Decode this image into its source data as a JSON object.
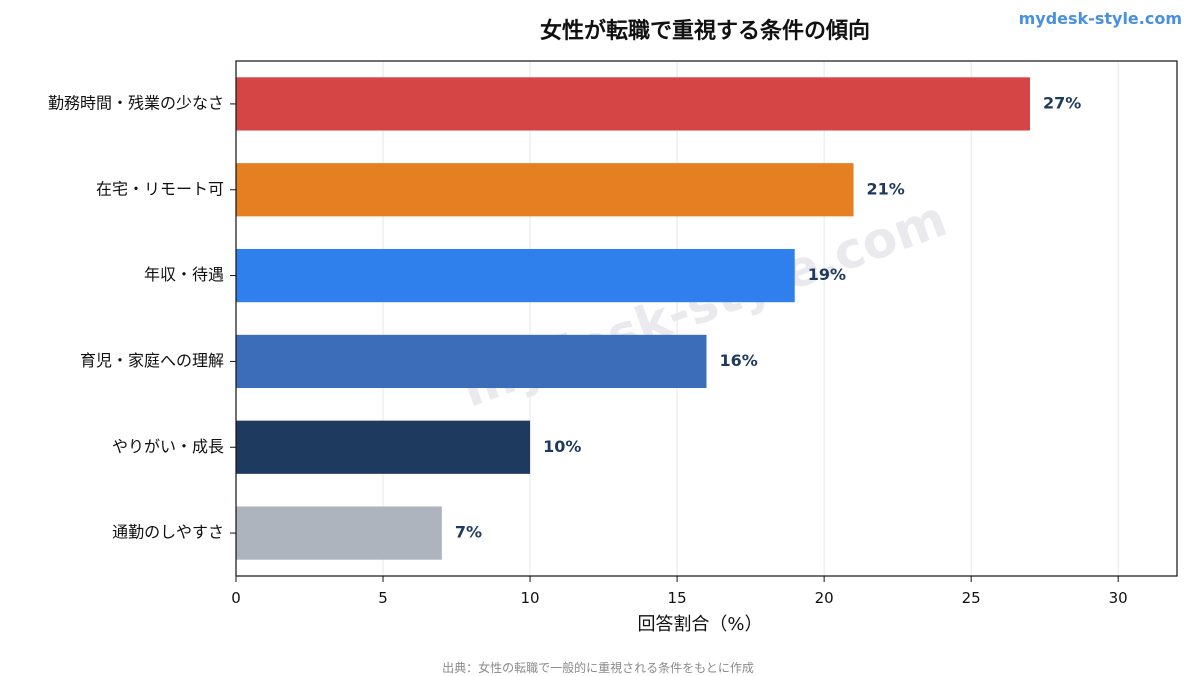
{
  "brand": "mydesk-style.com",
  "watermark": "mydesk-style.com",
  "source_note": "出典：女性の転職で一般的に重視される条件をもとに作成",
  "chart_data": {
    "type": "bar",
    "orientation": "horizontal",
    "title": "女性が転職で重視する条件の傾向",
    "xlabel": "回答割合（%）",
    "ylabel": "",
    "xlim": [
      0,
      32
    ],
    "xticks": [
      0,
      5,
      10,
      15,
      20,
      25,
      30
    ],
    "grid": "vertical",
    "value_suffix": "%",
    "categories": [
      "勤務時間・残業の少なさ",
      "在宅・リモート可",
      "年収・待遇",
      "育児・家庭への理解",
      "やりがい・成長",
      "通勤のしやすさ"
    ],
    "values": [
      27,
      21,
      19,
      16,
      10,
      7
    ],
    "colors": [
      "#d64545",
      "#e67e22",
      "#2f80ed",
      "#3b6db8",
      "#1e3a5f",
      "#aeb4bd"
    ]
  }
}
